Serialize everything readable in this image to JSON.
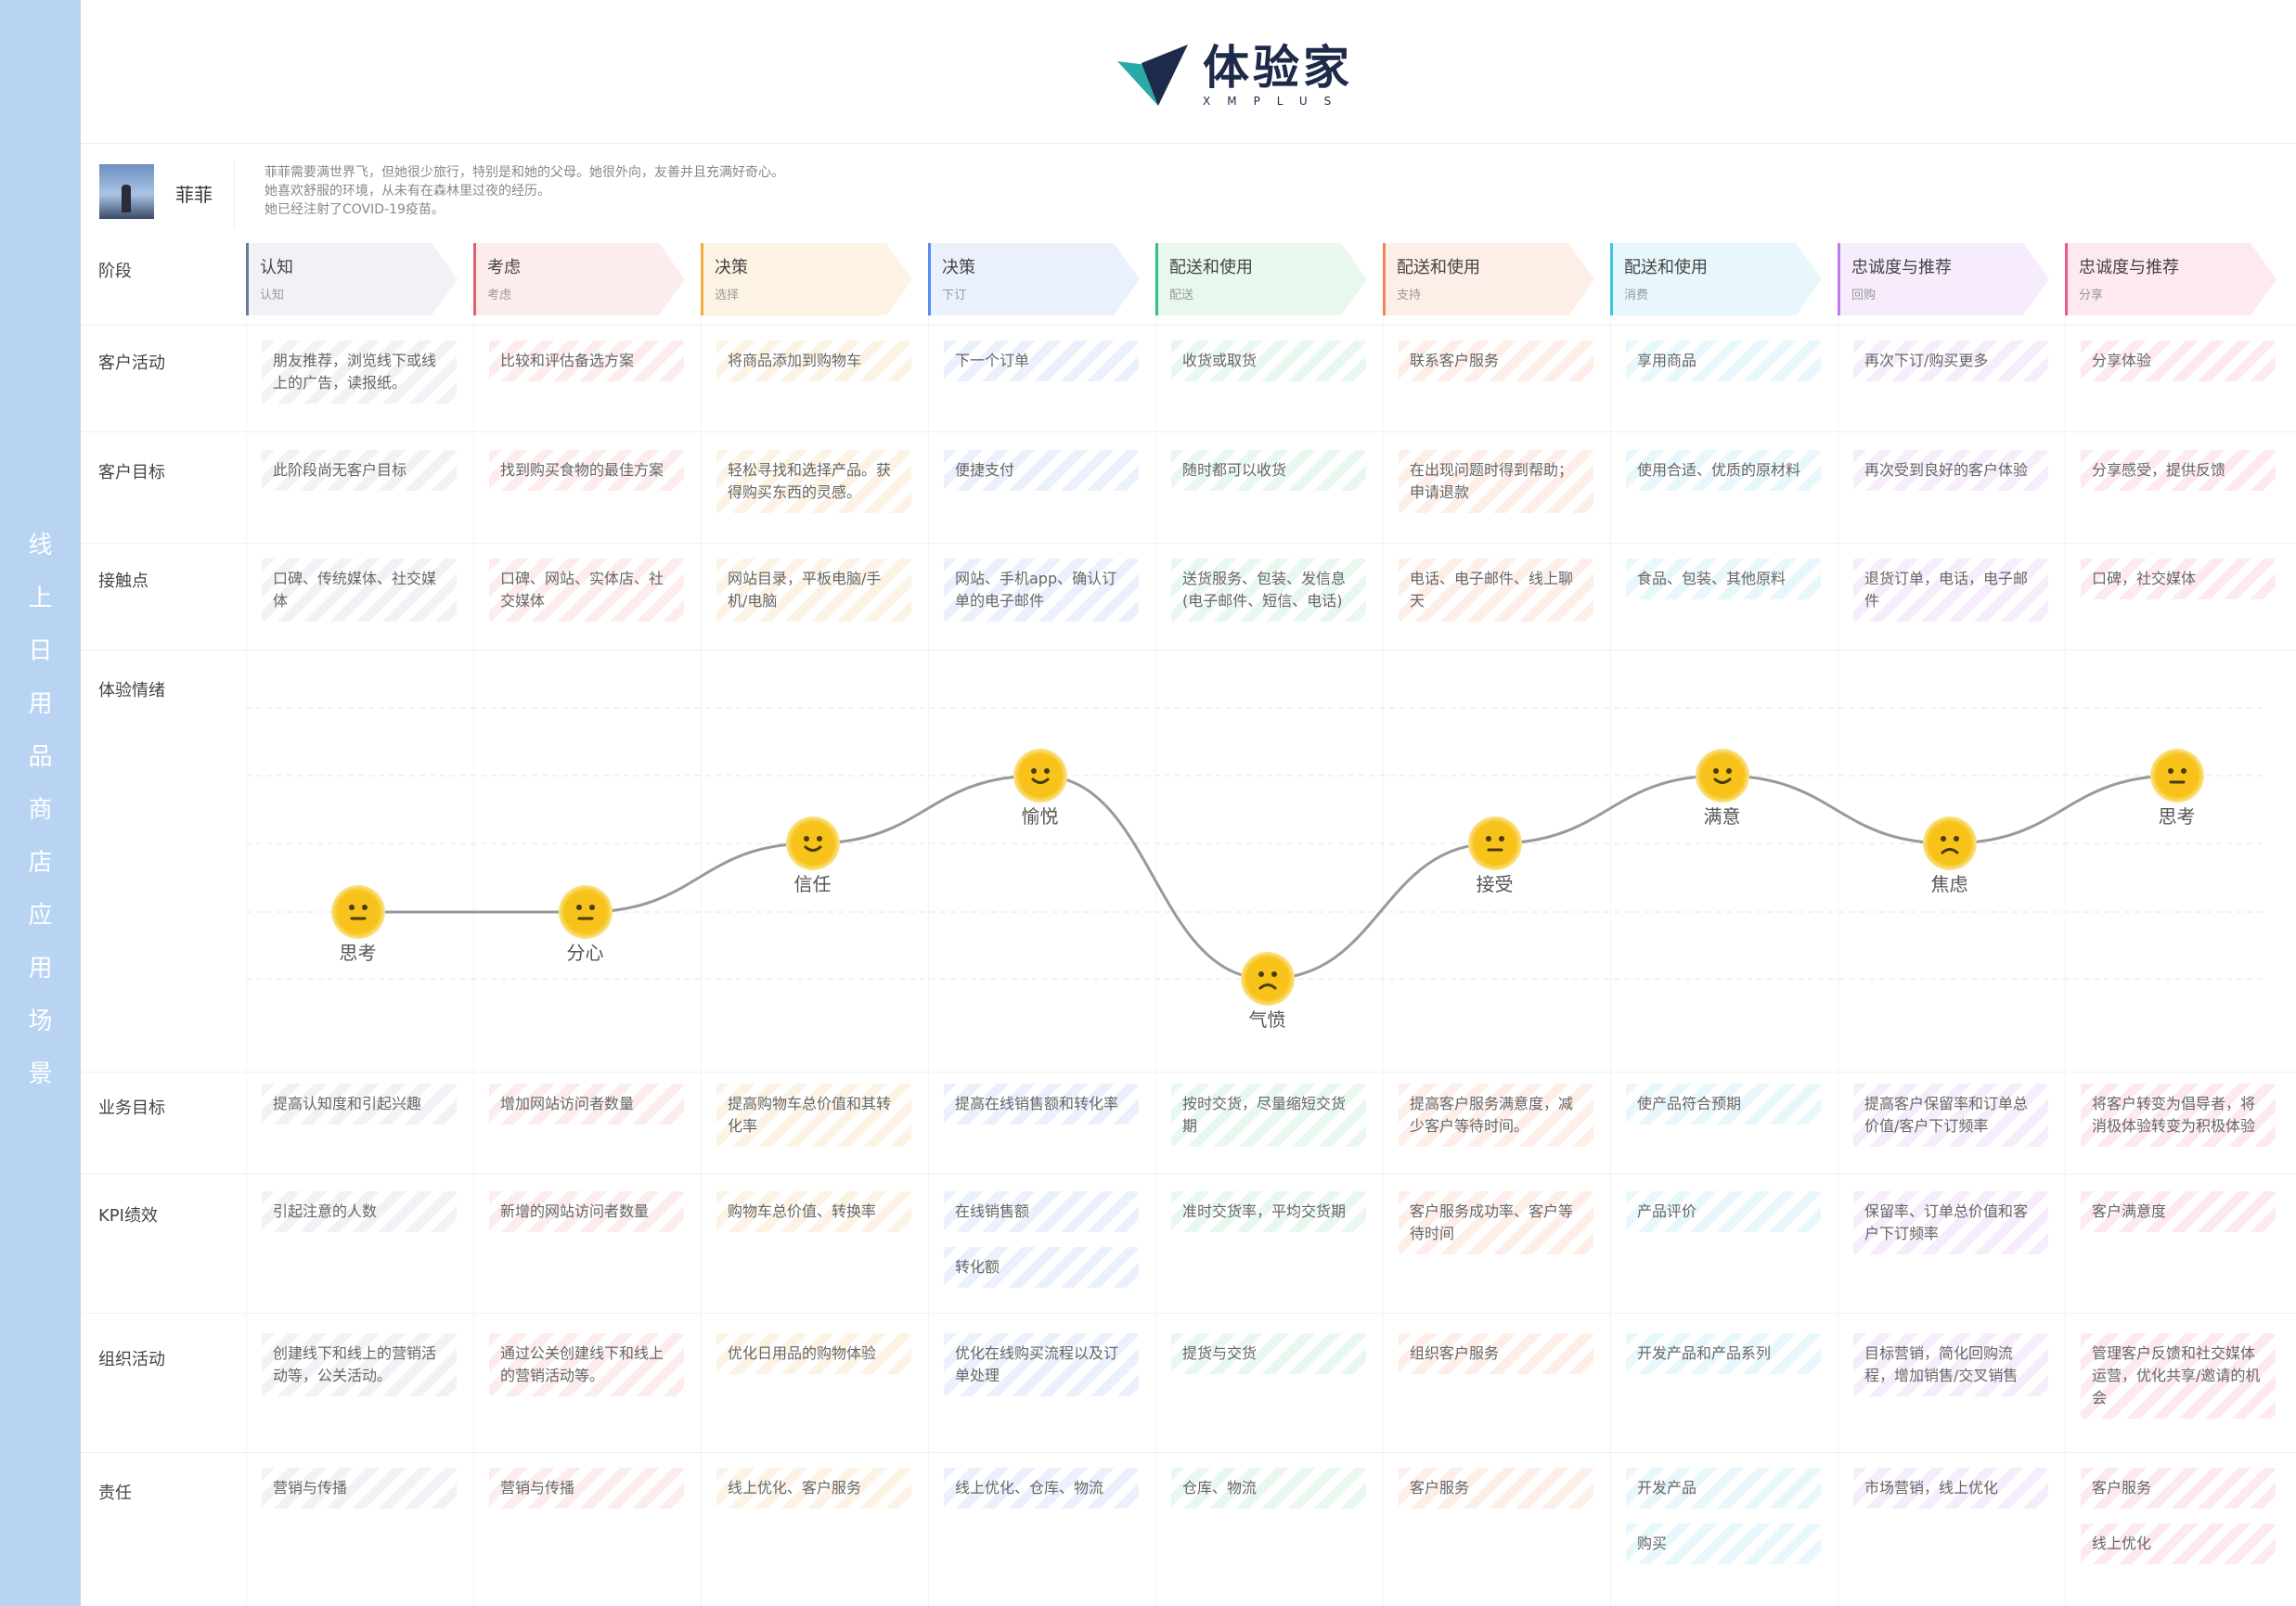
{
  "sidebar_title": "线上日用品商店应用场景",
  "logo": {
    "cn": "体验家",
    "en": "XMPLUS"
  },
  "persona": {
    "name": "菲菲",
    "description": [
      "菲菲需要满世界飞，但她很少旅行，特别是和她的父母。她很外向，友善并且充满好奇心。",
      "她喜欢舒服的环境，从未有在森林里过夜的经历。",
      "她已经注射了COVID-19疫苗。"
    ]
  },
  "row_labels": {
    "stage": "阶段",
    "activity": "客户活动",
    "goal": "客户目标",
    "touch": "接触点",
    "emotion": "体验情绪",
    "biz": "业务目标",
    "kpi": "KPI绩效",
    "org": "组织活动",
    "resp": "责任"
  },
  "stages": [
    {
      "name": "认知",
      "sub": "认知",
      "color": "#6b7a99",
      "bg": "#f1f2f5"
    },
    {
      "name": "考虑",
      "sub": "考虑",
      "color": "#e2606a",
      "bg": "#fdecec"
    },
    {
      "name": "决策",
      "sub": "选择",
      "color": "#f0ad3b",
      "bg": "#fdf3e4"
    },
    {
      "name": "决策",
      "sub": "下订",
      "color": "#5b8def",
      "bg": "#eaf1fd"
    },
    {
      "name": "配送和使用",
      "sub": "配送",
      "color": "#33c07a",
      "bg": "#e8f8ef"
    },
    {
      "name": "配送和使用",
      "sub": "支持",
      "color": "#f0845a",
      "bg": "#fdeee8"
    },
    {
      "name": "配送和使用",
      "sub": "消费",
      "color": "#3cc6e6",
      "bg": "#e7f7fb"
    },
    {
      "name": "忠诚度与推荐",
      "sub": "回购",
      "color": "#c07ae8",
      "bg": "#f6ecfc"
    },
    {
      "name": "忠诚度与推荐",
      "sub": "分享",
      "color": "#e85a8a",
      "bg": "#fde9ef"
    }
  ],
  "activities": [
    "朋友推荐，浏览线下或线上的广告，读报纸。",
    "比较和评估备选方案",
    "将商品添加到购物车",
    "下一个订单",
    "收货或取货",
    "联系客户服务",
    "享用商品",
    "再次下订/购买更多",
    "分享体验"
  ],
  "goals": [
    "此阶段尚无客户目标",
    "找到购买食物的最佳方案",
    "轻松寻找和选择产品。获得购买东西的灵感。",
    "便捷支付",
    "随时都可以收货",
    "在出现问题时得到帮助；申请退款",
    "使用合适、优质的原材料",
    "再次受到良好的客户体验",
    "分享感受，提供反馈"
  ],
  "touchpoints": [
    "口碑、传统媒体、社交媒体",
    "口碑、网站、实体店、社交媒体",
    "网站目录，平板电脑/手机/电脑",
    "网站、手机app、确认订单的电子邮件",
    "送货服务、包装、发信息(电子邮件、短信、电话)",
    "电话、电子邮件、线上聊天",
    "食品、包装、其他原料",
    "退货订单，电话，电子邮件",
    "口碑，社交媒体"
  ],
  "emotions": [
    {
      "label": "思考",
      "level": 2,
      "mood": "neutral"
    },
    {
      "label": "分心",
      "level": 2,
      "mood": "neutral"
    },
    {
      "label": "信任",
      "level": 3,
      "mood": "happy"
    },
    {
      "label": "愉悦",
      "level": 4,
      "mood": "happy"
    },
    {
      "label": "气愤",
      "level": 1,
      "mood": "sad"
    },
    {
      "label": "接受",
      "level": 3,
      "mood": "neutral"
    },
    {
      "label": "满意",
      "level": 4,
      "mood": "happy"
    },
    {
      "label": "焦虑",
      "level": 3,
      "mood": "sad"
    },
    {
      "label": "思考",
      "level": 4,
      "mood": "neutral"
    }
  ],
  "biz_goals": [
    "提高认知度和引起兴趣",
    "增加网站访问者数量",
    "提高购物车总价值和其转化率",
    "提高在线销售额和转化率",
    "按时交货，尽量缩短交货期",
    "提高客户服务满意度，减少客户等待时间。",
    "使产品符合预期",
    "提高客户保留率和订单总价值/客户下订频率",
    "将客户转变为倡导者，将消极体验转变为积极体验"
  ],
  "kpis": [
    [
      "引起注意的人数"
    ],
    [
      "新增的网站访问者数量"
    ],
    [
      "购物车总价值、转换率"
    ],
    [
      "在线销售额",
      "转化额"
    ],
    [
      "准时交货率，平均交货期"
    ],
    [
      "客户服务成功率、客户等待时间"
    ],
    [
      "产品评价"
    ],
    [
      "保留率、订单总价值和客户下订频率"
    ],
    [
      "客户满意度"
    ]
  ],
  "org_activities": [
    "创建线下和线上的营销活动等，公关活动。",
    "通过公关创建线下和线上的营销活动等。",
    "优化日用品的购物体验",
    "优化在线购买流程以及订单处理",
    "提货与交货",
    "组织客户服务",
    "开发产品和产品系列",
    "目标营销，简化回购流程，增加销售/交叉销售",
    "管理客户反馈和社交媒体运营，优化共享/邀请的机会"
  ],
  "responsibilities": [
    [
      "营销与传播"
    ],
    [
      "营销与传播"
    ],
    [
      "线上优化、客户服务"
    ],
    [
      "线上优化、仓库、物流"
    ],
    [
      "仓库、物流"
    ],
    [
      "客户服务"
    ],
    [
      "开发产品",
      "购买"
    ],
    [
      "市场营销，线上优化"
    ],
    [
      "客户服务",
      "线上优化"
    ]
  ]
}
